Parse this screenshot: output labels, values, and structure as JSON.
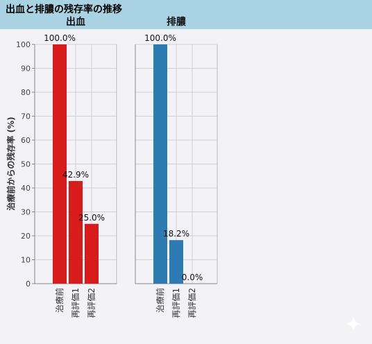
{
  "title": "出血と排膿の残存率の推移",
  "chart_data": {
    "type": "bar",
    "ylabel": "治療前からの残存率 (%)",
    "ylim": [
      0,
      100
    ],
    "yticks": [
      0,
      10,
      20,
      30,
      40,
      50,
      60,
      70,
      80,
      90,
      100
    ],
    "grid": true,
    "panels": [
      {
        "name": "出血",
        "color": "#d81b1b",
        "categories": [
          "治療前",
          "再評価1",
          "再評価2"
        ],
        "values": [
          100.0,
          42.9,
          25.0
        ],
        "labels": [
          "100.0%",
          "42.9%",
          "25.0%"
        ]
      },
      {
        "name": "排膿",
        "color": "#2e7bb4",
        "categories": [
          "治療前",
          "再評価1",
          "再評価2"
        ],
        "values": [
          100.0,
          18.2,
          0.0
        ],
        "labels": [
          "100.0%",
          "18.2%",
          "0.0%"
        ]
      }
    ]
  }
}
